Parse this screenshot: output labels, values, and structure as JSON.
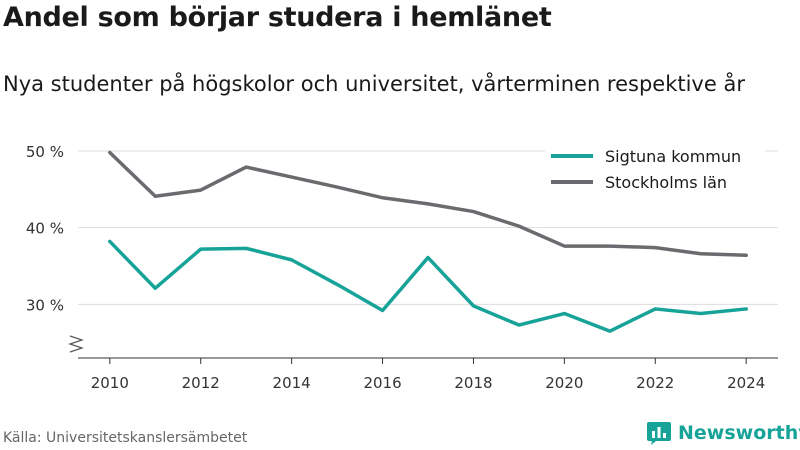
{
  "title": "Andel som börjar studera i hemlänet",
  "subtitle": "Nya studenter på högskolor och universitet, vårterminen respektive år",
  "source": "Källa: Universitetskanslersämbetet",
  "brand": {
    "name": "Newsworthy",
    "icon": "newsworthy-logo-icon",
    "color": "#17a398"
  },
  "chart_data": {
    "type": "line",
    "x": [
      2010,
      2011,
      2012,
      2013,
      2014,
      2015,
      2016,
      2017,
      2018,
      2019,
      2020,
      2021,
      2022,
      2023,
      2024
    ],
    "xticks": [
      2010,
      2012,
      2014,
      2016,
      2018,
      2020,
      2022,
      2024
    ],
    "xtick_labels": [
      "2010",
      "2012",
      "2014",
      "2016",
      "2018",
      "2020",
      "2022",
      "2024"
    ],
    "yticks": [
      30,
      40,
      50
    ],
    "ytick_labels": [
      "30 %",
      "40 %",
      "50 %"
    ],
    "ylim": [
      23,
      53
    ],
    "xlim": [
      2009.3,
      2024.7
    ],
    "y_axis_break": true,
    "grid": true,
    "legend_position": "top-right",
    "series": [
      {
        "name": "Sigtuna kommun",
        "color": "#17a398",
        "values": [
          38.2,
          32.1,
          37.2,
          37.3,
          35.8,
          32.6,
          29.2,
          36.1,
          29.8,
          27.3,
          28.8,
          26.5,
          29.4,
          28.8,
          29.4
        ]
      },
      {
        "name": "Stockholms län",
        "color": "#6b6b6f",
        "values": [
          49.8,
          44.1,
          44.9,
          47.9,
          46.6,
          45.3,
          43.9,
          43.1,
          42.1,
          40.2,
          37.6,
          37.6,
          37.4,
          36.6,
          36.4
        ]
      }
    ]
  }
}
